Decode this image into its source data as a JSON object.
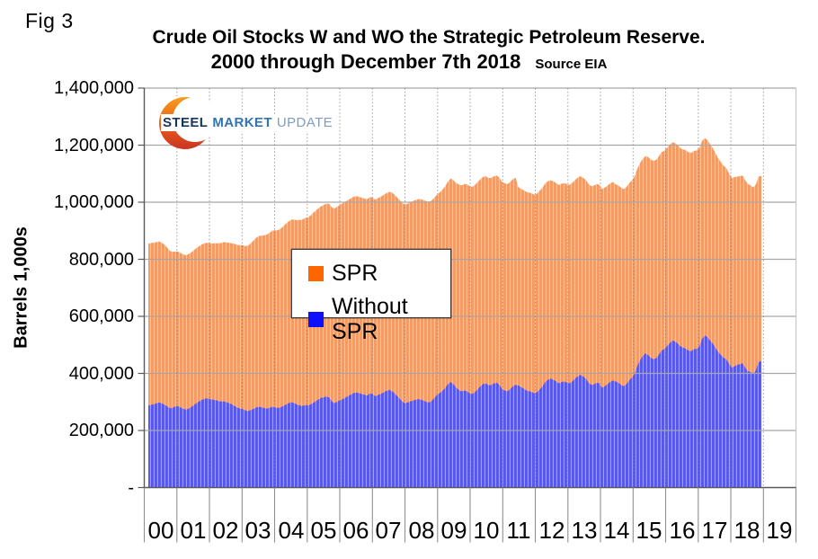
{
  "figure": {
    "fig_label": "Fig 3",
    "title_line1": "Crude Oil Stocks W and WO the Strategic Petroleum Reserve.",
    "title_line2": "2000 through December 7th 2018",
    "source_note": "Source EIA"
  },
  "logo": {
    "word1": "STEEL",
    "word2": "MARKET",
    "word3": "UPDATE"
  },
  "y_axis": {
    "title": "Barrels 1,000s",
    "tick_labels": [
      "1,400,000",
      "1,200,000",
      "1,000,000",
      "800,000",
      "600,000",
      "400,000",
      "200,000",
      "-"
    ],
    "max": 1400000,
    "min": 0,
    "step": 200000
  },
  "x_axis": {
    "tick_labels": [
      "00",
      "01",
      "02",
      "03",
      "04",
      "05",
      "06",
      "07",
      "08",
      "09",
      "10",
      "11",
      "12",
      "13",
      "14",
      "15",
      "16",
      "17",
      "18",
      "19"
    ]
  },
  "legend": [
    {
      "label": "SPR",
      "swatch_color": "#ff6600"
    },
    {
      "label": "Without SPR",
      "swatch_color": "#0f0fff"
    }
  ],
  "chart_data": {
    "type": "area",
    "stacked": true,
    "title": "Crude Oil Stocks W and WO the Strategic Petroleum Reserve.",
    "subtitle": "2000 through December 7th 2018",
    "source": "Source EIA",
    "unit": "thousand barrels",
    "frequency": "monthly",
    "x_start": "2000-01",
    "x_end": "2018-12-07",
    "ylabel": "Barrels 1,000s",
    "ylim": [
      0,
      1400000
    ],
    "grid": true,
    "legend_position": "center-left",
    "colors": {
      "spr_area": "#f49a62",
      "without_spr_area": "#5757ee",
      "stripe": "#ffffff"
    },
    "series": [
      {
        "name": "Without SPR",
        "color": "#5757ee",
        "values": [
          287000,
          290000,
          292000,
          295000,
          298000,
          295000,
          290000,
          284000,
          278000,
          280000,
          284000,
          286000,
          280000,
          276000,
          273000,
          277000,
          283000,
          290000,
          297000,
          303000,
          308000,
          312000,
          312000,
          309000,
          308000,
          306000,
          303000,
          301000,
          302000,
          299000,
          296000,
          291000,
          286000,
          280000,
          277000,
          275000,
          270000,
          268000,
          272000,
          276000,
          281000,
          283000,
          281000,
          278000,
          277000,
          280000,
          283000,
          281000,
          279000,
          281000,
          286000,
          291000,
          296000,
          299000,
          296000,
          291000,
          288000,
          286000,
          289000,
          287000,
          291000,
          297000,
          303000,
          309000,
          314000,
          317000,
          319000,
          316000,
          301000,
          296000,
          301000,
          306000,
          310000,
          315000,
          321000,
          326000,
          331000,
          333000,
          331000,
          328000,
          325000,
          322000,
          330000,
          328000,
          320000,
          324000,
          328000,
          333000,
          338000,
          342000,
          340000,
          332000,
          322000,
          312000,
          302000,
          295000,
          298000,
          302000,
          305000,
          308000,
          310000,
          308000,
          305000,
          300000,
          298000,
          305000,
          315000,
          325000,
          332000,
          340000,
          350000,
          363000,
          370000,
          362000,
          350000,
          342000,
          337000,
          340000,
          338000,
          330000,
          328000,
          335000,
          345000,
          355000,
          363000,
          365000,
          358000,
          360000,
          365000,
          368000,
          360000,
          345000,
          340000,
          338000,
          345000,
          355000,
          360000,
          358000,
          352000,
          347000,
          340000,
          338000,
          335000,
          330000,
          335000,
          345000,
          355000,
          370000,
          378000,
          382000,
          378000,
          372000,
          365000,
          370000,
          372000,
          368000,
          365000,
          372000,
          382000,
          390000,
          395000,
          390000,
          382000,
          368000,
          360000,
          362000,
          368000,
          365000,
          350000,
          355000,
          362000,
          370000,
          375000,
          372000,
          368000,
          360000,
          355000,
          362000,
          375000,
          385000,
          398000,
          425000,
          445000,
          460000,
          470000,
          465000,
          455000,
          450000,
          453000,
          465000,
          480000,
          485000,
          495000,
          505000,
          515000,
          512000,
          505000,
          495000,
          490000,
          487000,
          480000,
          478000,
          485000,
          486000,
          494000,
          520000,
          533000,
          528000,
          515000,
          505000,
          490000,
          475000,
          465000,
          455000,
          450000,
          435000,
          420000,
          425000,
          430000,
          432000,
          436000,
          420000,
          408000,
          405000,
          400000,
          412000,
          440000,
          443000
        ]
      },
      {
        "name": "SPR",
        "color": "#ff6600",
        "values": [
          567000,
          567000,
          566000,
          565000,
          564000,
          563000,
          561000,
          557000,
          551000,
          546000,
          543000,
          541000,
          541000,
          541000,
          541000,
          542000,
          542000,
          543000,
          544000,
          544000,
          545000,
          545000,
          546000,
          547000,
          548000,
          550000,
          553000,
          556000,
          558000,
          560000,
          562000,
          565000,
          568000,
          570000,
          572000,
          574000,
          576000,
          580000,
          585000,
          590000,
          595000,
          599000,
          602000,
          606000,
          610000,
          614000,
          618000,
          620000,
          623000,
          626000,
          630000,
          634000,
          637000,
          640000,
          643000,
          646000,
          650000,
          653000,
          656000,
          659000,
          662000,
          665000,
          668000,
          670000,
          672000,
          674000,
          676000,
          678000,
          680000,
          682000,
          684000,
          685000,
          686000,
          687000,
          687000,
          688000,
          688000,
          688000,
          688000,
          688000,
          688000,
          688000,
          688000,
          688000,
          689000,
          690000,
          691000,
          692000,
          693000,
          694000,
          695000,
          696000,
          696000,
          696000,
          696000,
          696000,
          697000,
          698000,
          699000,
          700000,
          701000,
          702000,
          702000,
          703000,
          704000,
          702000,
          702000,
          702000,
          703000,
          705000,
          707000,
          710000,
          713000,
          715000,
          717000,
          720000,
          722000,
          724000,
          725000,
          726000,
          726000,
          726000,
          726000,
          726000,
          726000,
          726000,
          726000,
          726000,
          726000,
          726000,
          726000,
          726000,
          726000,
          726000,
          726000,
          726000,
          726000,
          695000,
          695000,
          695000,
          696000,
          696000,
          696000,
          696000,
          696000,
          696000,
          696000,
          696000,
          696000,
          695000,
          695000,
          695000,
          695000,
          695000,
          695000,
          695000,
          696000,
          696000,
          696000,
          696000,
          696000,
          696000,
          696000,
          696000,
          696000,
          696000,
          696000,
          696000,
          696000,
          696000,
          696000,
          696000,
          696000,
          691000,
          691000,
          691000,
          691000,
          691000,
          691000,
          691000,
          691000,
          691000,
          691000,
          691000,
          691000,
          694000,
          695000,
          695000,
          695000,
          695000,
          695000,
          695000,
          695000,
          695000,
          695000,
          695000,
          695000,
          695000,
          695000,
          695000,
          695000,
          695000,
          695000,
          695000,
          695000,
          694000,
          692000,
          690000,
          688000,
          685000,
          682000,
          679000,
          676000,
          673000,
          670000,
          667000,
          665000,
          663000,
          660000,
          659000,
          658000,
          657000,
          656000,
          654000,
          652000,
          651000,
          650000,
          649000
        ]
      }
    ]
  }
}
